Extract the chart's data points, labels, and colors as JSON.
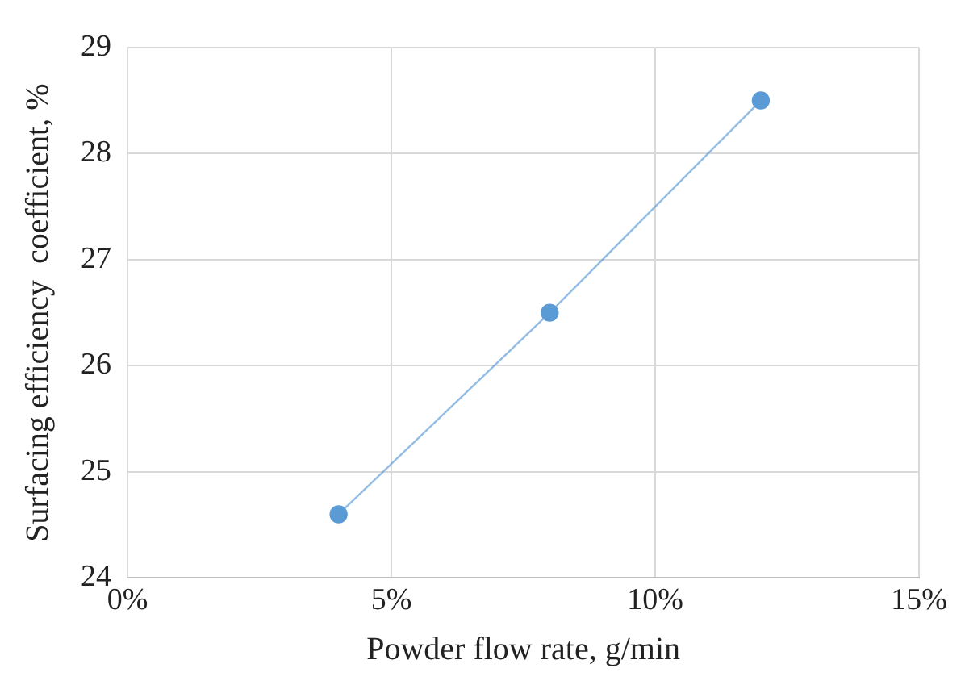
{
  "chart_data": {
    "type": "line",
    "xlabel": "Powder flow rate, g/min",
    "ylabel": "Surfacing efficiency  coefficient, %",
    "x": [
      4,
      8,
      12
    ],
    "series": [
      {
        "color": "#5b9bd5",
        "values": [
          24.6,
          26.5,
          28.5
        ]
      }
    ],
    "xlim": [
      0,
      15
    ],
    "xticks": [
      {
        "value": 0,
        "label": "0%"
      },
      {
        "value": 5,
        "label": "5%"
      },
      {
        "value": 10,
        "label": "10%"
      },
      {
        "value": 15,
        "label": "15%"
      }
    ],
    "ylim": [
      24,
      29
    ],
    "yticks": [
      24,
      25,
      26,
      27,
      28,
      29
    ],
    "grid": true,
    "marker": "circle",
    "line_style": "solid",
    "legend": false
  }
}
